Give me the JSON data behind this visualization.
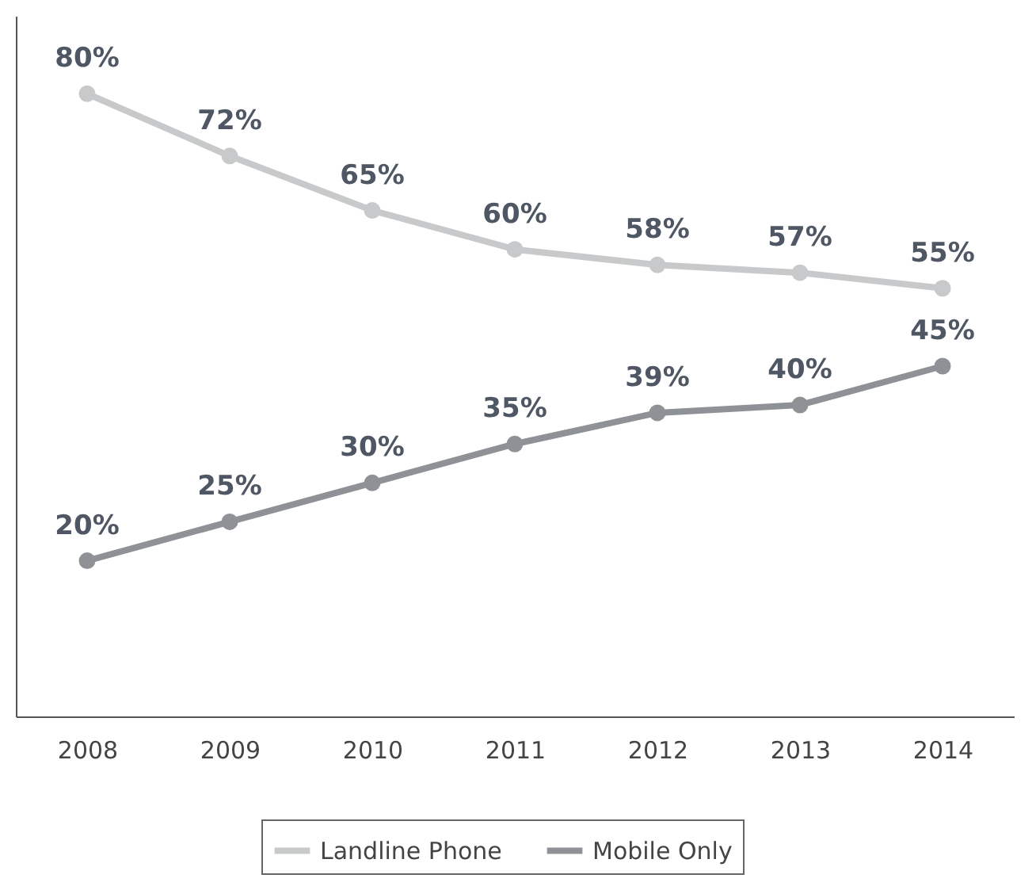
{
  "chart_data": {
    "type": "line",
    "categories": [
      "2008",
      "2009",
      "2010",
      "2011",
      "2012",
      "2013",
      "2014"
    ],
    "series": [
      {
        "name": "Landline Phone",
        "color": "#c8c9ca",
        "values": [
          80,
          72,
          65,
          60,
          58,
          57,
          55
        ],
        "value_labels": [
          "80%",
          "72%",
          "65%",
          "60%",
          "58%",
          "57%",
          "55%"
        ]
      },
      {
        "name": "Mobile Only",
        "color": "#8e9196",
        "values": [
          20,
          25,
          30,
          35,
          39,
          40,
          45
        ],
        "value_labels": [
          "20%",
          "25%",
          "30%",
          "35%",
          "39%",
          "40%",
          "45%"
        ]
      }
    ],
    "tick_labels": "x",
    "legend": "bottom",
    "grid": false,
    "marker": "circle",
    "line_style": "solid"
  }
}
